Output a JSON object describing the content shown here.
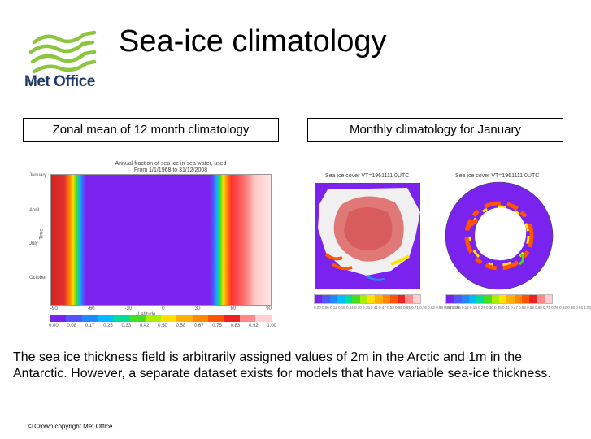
{
  "logo": {
    "text": "Met Office"
  },
  "title": "Sea-ice climatology",
  "captions": {
    "left": "Zonal mean of 12 month climatology",
    "right": "Monthly climatology for January"
  },
  "zonal_plot": {
    "header_line1": "Annual fraction of sea ice in sea water, used",
    "header_line2": "From 1/1/1968 to 31/12/2008",
    "ylabel": "Time",
    "yticks": [
      "January",
      "April",
      "July",
      "October"
    ],
    "xlabel": "Latitude",
    "xticks": [
      "-90",
      "-60",
      "-30",
      "0",
      "30",
      "60",
      "90"
    ],
    "colorbar_ticks": [
      "0.00",
      "0.08",
      "0.17",
      "0.25",
      "0.33",
      "0.42",
      "0.50",
      "0.58",
      "0.67",
      "0.75",
      "0.83",
      "0.92",
      "1.00"
    ]
  },
  "maps": {
    "arctic_header": "Sea ice cover VT=1961111 0UTC",
    "antarctic_header": "Sea ice cover VT=1961111 0UTC",
    "colorbar_ticks": "0.00 0.06 0.12 0.18 0.24 0.30 0.35 0.41 0.47 0.53 0.59 0.65 0.71 0.76 0.82 0.88 0.94 1.00"
  },
  "colors": {
    "scale": [
      "#7a22ee",
      "#5555ff",
      "#2288ff",
      "#00bbff",
      "#00dd99",
      "#44dd22",
      "#aaee00",
      "#ffe000",
      "#ffb000",
      "#ff8800",
      "#ff5500",
      "#ee2222",
      "#ff8888",
      "#ffd0d0"
    ],
    "logo_green": "#8cc63f",
    "logo_navy": "#1f3a66"
  },
  "body": "The sea ice thickness field is arbitrarily assigned values of 2m in the Arctic and 1m in the Antarctic. However, a separate dataset exists for models that have variable sea-ice thickness.",
  "footer": {
    "copyright": "© Crown copyright   Met Office"
  }
}
